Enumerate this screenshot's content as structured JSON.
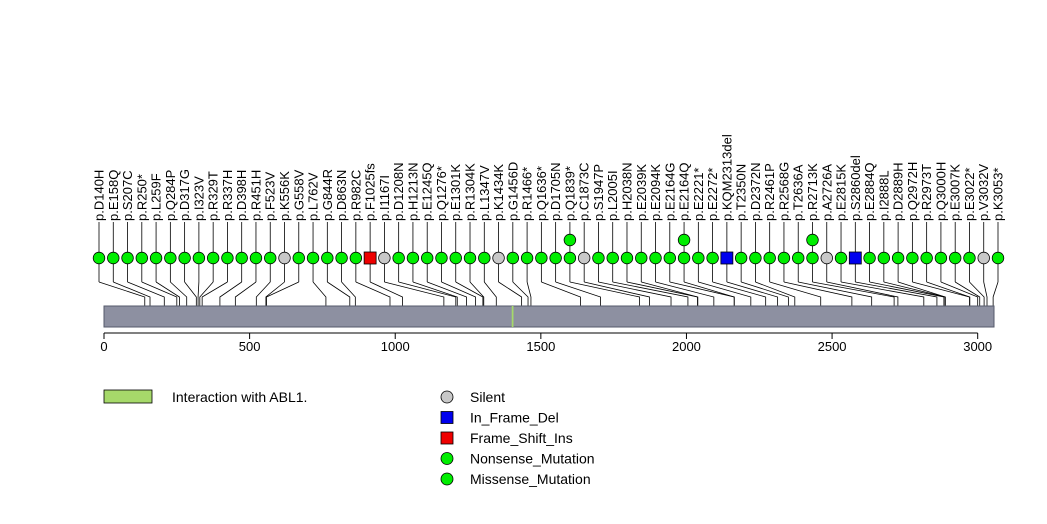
{
  "chart_data": {
    "type": "lollipop",
    "protein_length": 3056,
    "axis": {
      "xlim": [
        0,
        3056
      ],
      "ticks": [
        0,
        500,
        1000,
        1500,
        2000,
        2500,
        3000
      ],
      "tick_labels": [
        "0",
        "500",
        "1000",
        "1500",
        "2000",
        "2500",
        "3000"
      ]
    },
    "domains": [
      {
        "name": "Interaction with ABL1.",
        "start": 1400,
        "end": 1406,
        "color": "#a6d96a"
      }
    ],
    "colors": {
      "backbone": "#8d90a1",
      "Silent": "#c8c8c8",
      "In_Frame_Del": "#0000ee",
      "Frame_Shift_Ins": "#ee0000",
      "Nonsense_Mutation": "#00ee00",
      "Missense_Mutation": "#00ee00"
    },
    "legend_domains": [
      {
        "label": "Interaction with ABL1.",
        "color": "#a6d96a"
      }
    ],
    "legend_mutations": [
      {
        "label": "Silent",
        "shape": "circle",
        "color": "#c8c8c8"
      },
      {
        "label": "In_Frame_Del",
        "shape": "square",
        "color": "#0000ee"
      },
      {
        "label": "Frame_Shift_Ins",
        "shape": "square",
        "color": "#ee0000"
      },
      {
        "label": "Nonsense_Mutation",
        "shape": "circle",
        "color": "#00ee00"
      },
      {
        "label": "Missense_Mutation",
        "shape": "circle",
        "color": "#00ee00"
      }
    ],
    "mutations": [
      {
        "label": "p.D140H",
        "pos": 140,
        "type": "Missense_Mutation",
        "count": 1
      },
      {
        "label": "p.E158Q",
        "pos": 158,
        "type": "Missense_Mutation",
        "count": 1
      },
      {
        "label": "p.S207C",
        "pos": 207,
        "type": "Missense_Mutation",
        "count": 1
      },
      {
        "label": "p.R250*",
        "pos": 250,
        "type": "Nonsense_Mutation",
        "count": 1
      },
      {
        "label": "p.L259F",
        "pos": 259,
        "type": "Missense_Mutation",
        "count": 1
      },
      {
        "label": "p.Q284P",
        "pos": 284,
        "type": "Missense_Mutation",
        "count": 1
      },
      {
        "label": "p.D317G",
        "pos": 317,
        "type": "Missense_Mutation",
        "count": 1
      },
      {
        "label": "p.I323V",
        "pos": 323,
        "type": "Missense_Mutation",
        "count": 1
      },
      {
        "label": "p.R329T",
        "pos": 329,
        "type": "Missense_Mutation",
        "count": 1
      },
      {
        "label": "p.R337H",
        "pos": 337,
        "type": "Missense_Mutation",
        "count": 1
      },
      {
        "label": "p.D398H",
        "pos": 398,
        "type": "Missense_Mutation",
        "count": 1
      },
      {
        "label": "p.R451H",
        "pos": 451,
        "type": "Missense_Mutation",
        "count": 1
      },
      {
        "label": "p.F523V",
        "pos": 523,
        "type": "Missense_Mutation",
        "count": 1
      },
      {
        "label": "p.K556K",
        "pos": 556,
        "type": "Silent",
        "count": 1
      },
      {
        "label": "p.G558V",
        "pos": 558,
        "type": "Missense_Mutation",
        "count": 1
      },
      {
        "label": "p.L762V",
        "pos": 762,
        "type": "Missense_Mutation",
        "count": 1
      },
      {
        "label": "p.G844R",
        "pos": 844,
        "type": "Missense_Mutation",
        "count": 1
      },
      {
        "label": "p.D863N",
        "pos": 863,
        "type": "Missense_Mutation",
        "count": 1
      },
      {
        "label": "p.R982C",
        "pos": 982,
        "type": "Missense_Mutation",
        "count": 1
      },
      {
        "label": "p.F1025fs",
        "pos": 1025,
        "type": "Frame_Shift_Ins",
        "count": 1
      },
      {
        "label": "p.I1167I",
        "pos": 1167,
        "type": "Silent",
        "count": 1
      },
      {
        "label": "p.D1208N",
        "pos": 1208,
        "type": "Missense_Mutation",
        "count": 1
      },
      {
        "label": "p.H1213N",
        "pos": 1213,
        "type": "Missense_Mutation",
        "count": 1
      },
      {
        "label": "p.E1245Q",
        "pos": 1245,
        "type": "Missense_Mutation",
        "count": 1
      },
      {
        "label": "p.Q1276*",
        "pos": 1276,
        "type": "Nonsense_Mutation",
        "count": 1
      },
      {
        "label": "p.E1301K",
        "pos": 1301,
        "type": "Missense_Mutation",
        "count": 1
      },
      {
        "label": "p.R1304K",
        "pos": 1304,
        "type": "Missense_Mutation",
        "count": 1
      },
      {
        "label": "p.L1347V",
        "pos": 1347,
        "type": "Missense_Mutation",
        "count": 1
      },
      {
        "label": "p.K1434K",
        "pos": 1434,
        "type": "Silent",
        "count": 1
      },
      {
        "label": "p.G1456D",
        "pos": 1456,
        "type": "Missense_Mutation",
        "count": 1
      },
      {
        "label": "p.R1466*",
        "pos": 1466,
        "type": "Nonsense_Mutation",
        "count": 1
      },
      {
        "label": "p.Q1636*",
        "pos": 1636,
        "type": "Nonsense_Mutation",
        "count": 1
      },
      {
        "label": "p.D1705N",
        "pos": 1705,
        "type": "Missense_Mutation",
        "count": 1
      },
      {
        "label": "p.Q1839*",
        "pos": 1839,
        "type": "Nonsense_Mutation",
        "count": 2
      },
      {
        "label": "p.C1873C",
        "pos": 1873,
        "type": "Silent",
        "count": 1
      },
      {
        "label": "p.S1947P",
        "pos": 1947,
        "type": "Missense_Mutation",
        "count": 1
      },
      {
        "label": "p.L2005I",
        "pos": 2005,
        "type": "Missense_Mutation",
        "count": 1
      },
      {
        "label": "p.H2038N",
        "pos": 2038,
        "type": "Missense_Mutation",
        "count": 1
      },
      {
        "label": "p.E2039K",
        "pos": 2039,
        "type": "Missense_Mutation",
        "count": 1
      },
      {
        "label": "p.E2094K",
        "pos": 2094,
        "type": "Missense_Mutation",
        "count": 1
      },
      {
        "label": "p.E2164G",
        "pos": 2164,
        "type": "Missense_Mutation",
        "count": 1
      },
      {
        "label": "p.E2164Q",
        "pos": 2164,
        "type": "Missense_Mutation",
        "count": 2
      },
      {
        "label": "p.E2221*",
        "pos": 2221,
        "type": "Nonsense_Mutation",
        "count": 1
      },
      {
        "label": "p.E2272*",
        "pos": 2272,
        "type": "Nonsense_Mutation",
        "count": 1
      },
      {
        "label": "p.KQM2313del",
        "pos": 2313,
        "type": "In_Frame_Del",
        "count": 1
      },
      {
        "label": "p.T2350N",
        "pos": 2350,
        "type": "Missense_Mutation",
        "count": 1
      },
      {
        "label": "p.D2372N",
        "pos": 2372,
        "type": "Missense_Mutation",
        "count": 1
      },
      {
        "label": "p.R2461P",
        "pos": 2461,
        "type": "Missense_Mutation",
        "count": 1
      },
      {
        "label": "p.R2568G",
        "pos": 2568,
        "type": "Missense_Mutation",
        "count": 1
      },
      {
        "label": "p.T2636A",
        "pos": 2636,
        "type": "Missense_Mutation",
        "count": 1
      },
      {
        "label": "p.R2713K",
        "pos": 2713,
        "type": "Missense_Mutation",
        "count": 2
      },
      {
        "label": "p.A2726A",
        "pos": 2726,
        "type": "Silent",
        "count": 1
      },
      {
        "label": "p.E2815K",
        "pos": 2815,
        "type": "Missense_Mutation",
        "count": 1
      },
      {
        "label": "p.S2860del",
        "pos": 2860,
        "type": "In_Frame_Del",
        "count": 1
      },
      {
        "label": "p.E2884Q",
        "pos": 2884,
        "type": "Missense_Mutation",
        "count": 1
      },
      {
        "label": "p.I2888L",
        "pos": 2888,
        "type": "Missense_Mutation",
        "count": 1
      },
      {
        "label": "p.D2889H",
        "pos": 2889,
        "type": "Missense_Mutation",
        "count": 1
      },
      {
        "label": "p.Q2972H",
        "pos": 2972,
        "type": "Missense_Mutation",
        "count": 1
      },
      {
        "label": "p.R2973T",
        "pos": 2973,
        "type": "Missense_Mutation",
        "count": 1
      },
      {
        "label": "p.Q3000H",
        "pos": 3000,
        "type": "Missense_Mutation",
        "count": 1
      },
      {
        "label": "p.E3007K",
        "pos": 3007,
        "type": "Missense_Mutation",
        "count": 1
      },
      {
        "label": "p.E3022*",
        "pos": 3022,
        "type": "Nonsense_Mutation",
        "count": 1
      },
      {
        "label": "p.V3032V",
        "pos": 3032,
        "type": "Silent",
        "count": 1
      },
      {
        "label": "p.K3053*",
        "pos": 3053,
        "type": "Nonsense_Mutation",
        "count": 1
      }
    ]
  }
}
